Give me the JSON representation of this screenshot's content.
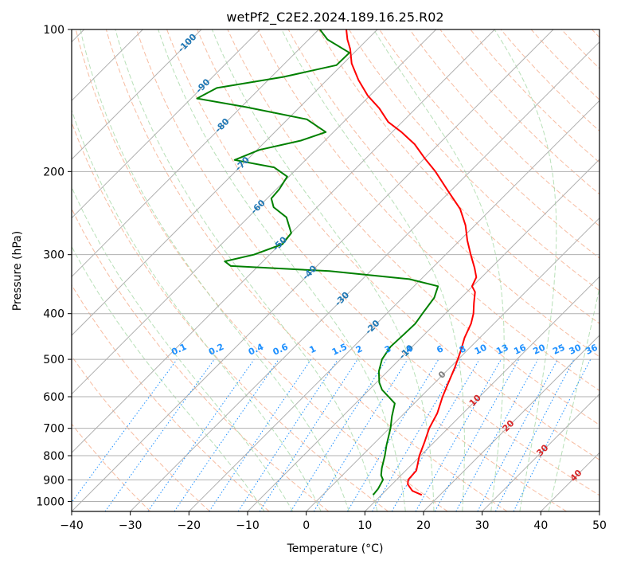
{
  "chart_data": {
    "type": "skew-t",
    "title": "wetPf2_C2E2.2024.189.16.25.R02",
    "xlabel": "Temperature (°C)",
    "ylabel": "Pressure (hPa)",
    "xlim": [
      -40,
      50
    ],
    "ylim": [
      1050,
      100
    ],
    "y_scale": "log",
    "grid": true,
    "x_ticks": [
      -40,
      -30,
      -20,
      -10,
      0,
      10,
      20,
      30,
      40,
      50
    ],
    "y_ticks": [
      100,
      200,
      300,
      400,
      500,
      600,
      700,
      800,
      900,
      1000
    ],
    "colors": {
      "temperature": "#ff0000",
      "dewpoint": "#008000",
      "isotherm": "#b0b0b0",
      "dry_adiabat": "#f4a582",
      "moist_adiabat": "#a6d8a6",
      "mixing_ratio": "#1e90ff",
      "isotherm_label": "#1f77b4",
      "warm_label": "#d62728",
      "zero_label": "#808080"
    },
    "isotherm_labels": [
      {
        "text": "-100",
        "value": -100,
        "p": 107
      },
      {
        "text": "-90",
        "value": -90,
        "p": 132
      },
      {
        "text": "-80",
        "value": -80,
        "p": 160
      },
      {
        "text": "-70",
        "value": -70,
        "p": 193
      },
      {
        "text": "-60",
        "value": -60,
        "p": 238
      },
      {
        "text": "-50",
        "value": -50,
        "p": 285
      },
      {
        "text": "-40",
        "value": -40,
        "p": 328
      },
      {
        "text": "-30",
        "value": -30,
        "p": 373
      },
      {
        "text": "-20",
        "value": -20,
        "p": 428
      },
      {
        "text": "-10",
        "value": -10,
        "p": 483
      },
      {
        "text": "0",
        "value": 0,
        "p": 540
      },
      {
        "text": "10",
        "value": 10,
        "p": 612
      },
      {
        "text": "20",
        "value": 20,
        "p": 693
      },
      {
        "text": "30",
        "value": 30,
        "p": 781
      },
      {
        "text": "40",
        "value": 40,
        "p": 883
      }
    ],
    "mixing_ratio_labels": [
      {
        "text": "0.1",
        "value": 0.1
      },
      {
        "text": "0.2",
        "value": 0.2
      },
      {
        "text": "0.4",
        "value": 0.4
      },
      {
        "text": "0.6",
        "value": 0.6
      },
      {
        "text": "1",
        "value": 1
      },
      {
        "text": "1.5",
        "value": 1.5
      },
      {
        "text": "2",
        "value": 2
      },
      {
        "text": "3",
        "value": 3
      },
      {
        "text": "4",
        "value": 4
      },
      {
        "text": "6",
        "value": 6
      },
      {
        "text": "8",
        "value": 8
      },
      {
        "text": "10",
        "value": 10
      },
      {
        "text": "13",
        "value": 13
      },
      {
        "text": "16",
        "value": 16
      },
      {
        "text": "20",
        "value": 20
      },
      {
        "text": "25",
        "value": 25
      },
      {
        "text": "30",
        "value": 30
      },
      {
        "text": "36",
        "value": 36
      }
    ],
    "series": [
      {
        "kind": "temperature",
        "points": [
          [
            969,
            16.9
          ],
          [
            950,
            14.6
          ],
          [
            920,
            12.7
          ],
          [
            900,
            12.0
          ],
          [
            860,
            11.8
          ],
          [
            800,
            9.8
          ],
          [
            750,
            8.4
          ],
          [
            700,
            6.8
          ],
          [
            650,
            5.6
          ],
          [
            600,
            3.7
          ],
          [
            560,
            2.3
          ],
          [
            520,
            0.8
          ],
          [
            480,
            -1.0
          ],
          [
            450,
            -2.6
          ],
          [
            420,
            -3.9
          ],
          [
            400,
            -5.2
          ],
          [
            380,
            -6.9
          ],
          [
            360,
            -8.6
          ],
          [
            350,
            -10.1
          ],
          [
            335,
            -10.9
          ],
          [
            320,
            -12.8
          ],
          [
            300,
            -15.7
          ],
          [
            280,
            -18.7
          ],
          [
            260,
            -21.6
          ],
          [
            240,
            -25.3
          ],
          [
            220,
            -30.4
          ],
          [
            200,
            -35.9
          ],
          [
            188,
            -39.8
          ],
          [
            175,
            -44.1
          ],
          [
            165,
            -48.4
          ],
          [
            157,
            -52.4
          ],
          [
            147,
            -56.2
          ],
          [
            138,
            -60.4
          ],
          [
            128,
            -64.6
          ],
          [
            118,
            -68.6
          ],
          [
            110,
            -71.3
          ],
          [
            105,
            -73.4
          ],
          [
            100,
            -75.3
          ]
        ]
      },
      {
        "kind": "dewpoint",
        "points": [
          [
            969,
            8.6
          ],
          [
            940,
            8.4
          ],
          [
            900,
            7.7
          ],
          [
            880,
            6.6
          ],
          [
            850,
            5.5
          ],
          [
            800,
            3.9
          ],
          [
            760,
            2.4
          ],
          [
            700,
            0.2
          ],
          [
            660,
            -1.6
          ],
          [
            620,
            -3.3
          ],
          [
            600,
            -5.5
          ],
          [
            580,
            -7.8
          ],
          [
            560,
            -9.5
          ],
          [
            530,
            -11.5
          ],
          [
            500,
            -13.0
          ],
          [
            470,
            -13.7
          ],
          [
            440,
            -13.5
          ],
          [
            420,
            -13.4
          ],
          [
            400,
            -13.9
          ],
          [
            370,
            -14.6
          ],
          [
            350,
            -15.9
          ],
          [
            338,
            -22.0
          ],
          [
            325,
            -37.0
          ],
          [
            317,
            -54.7
          ],
          [
            310,
            -56.5
          ],
          [
            300,
            -52.7
          ],
          [
            285,
            -49.6
          ],
          [
            270,
            -50.0
          ],
          [
            250,
            -53.5
          ],
          [
            238,
            -57.4
          ],
          [
            228,
            -59.3
          ],
          [
            218,
            -59.5
          ],
          [
            205,
            -60.3
          ],
          [
            196,
            -64.1
          ],
          [
            189,
            -72.1
          ],
          [
            180,
            -69.6
          ],
          [
            172,
            -64.1
          ],
          [
            165,
            -61.3
          ],
          [
            155,
            -66.7
          ],
          [
            146,
            -79.2
          ],
          [
            140,
            -89.0
          ],
          [
            133,
            -87.4
          ],
          [
            126,
            -77.9
          ],
          [
            119,
            -70.9
          ],
          [
            112,
            -70.8
          ],
          [
            105,
            -76.8
          ],
          [
            100,
            -79.8
          ]
        ]
      }
    ]
  }
}
